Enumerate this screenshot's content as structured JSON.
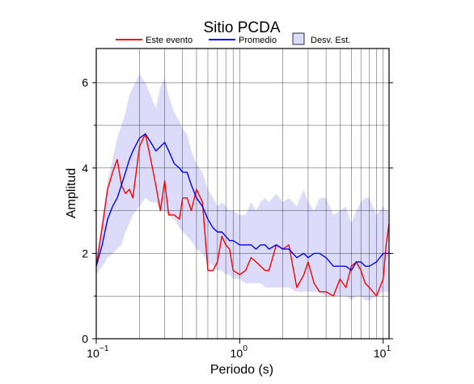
{
  "chart_data": {
    "type": "line",
    "title": "Sitio PCDA",
    "xlabel": "Periodo (s)",
    "ylabel": "Amplitud",
    "x_scale": "log",
    "xlim": [
      0.1,
      11
    ],
    "ylim": [
      0,
      6.8
    ],
    "grid": true,
    "legend_position": "top",
    "x_ticks": [
      {
        "base": "10",
        "exp": "−1",
        "value": 0.1
      },
      {
        "base": "10",
        "exp": "0",
        "value": 1
      },
      {
        "base": "10",
        "exp": "1",
        "value": 10
      }
    ],
    "y_ticks": [
      "0",
      "2",
      "4",
      "6"
    ],
    "y_tick_values": [
      0,
      2,
      4,
      6
    ],
    "legend": [
      {
        "label": "Este evento",
        "color": "#ff0000",
        "kind": "line"
      },
      {
        "label": "Promedio",
        "color": "#0000ff",
        "kind": "line"
      },
      {
        "label": "Desv. Est.",
        "color": "#dcdcfa",
        "kind": "box"
      }
    ],
    "x": [
      0.1,
      0.11,
      0.12,
      0.13,
      0.14,
      0.15,
      0.16,
      0.17,
      0.18,
      0.2,
      0.22,
      0.24,
      0.26,
      0.28,
      0.3,
      0.32,
      0.35,
      0.38,
      0.4,
      0.43,
      0.46,
      0.5,
      0.55,
      0.6,
      0.65,
      0.7,
      0.75,
      0.8,
      0.85,
      0.9,
      1.0,
      1.1,
      1.2,
      1.3,
      1.4,
      1.5,
      1.6,
      1.8,
      2.0,
      2.2,
      2.5,
      2.8,
      3.0,
      3.3,
      3.6,
      4.0,
      4.5,
      5.0,
      5.5,
      6.0,
      6.5,
      7.0,
      7.5,
      8.0,
      9.0,
      10.0,
      10.5,
      11.0
    ],
    "series": [
      {
        "name": "Este evento",
        "color": "#ff0000",
        "values": [
          1.7,
          2.6,
          3.5,
          3.9,
          4.2,
          3.6,
          3.4,
          3.5,
          3.3,
          4.5,
          4.8,
          4.2,
          3.6,
          3.0,
          3.7,
          2.9,
          2.9,
          2.8,
          3.3,
          3.3,
          3.0,
          3.5,
          3.2,
          1.6,
          1.6,
          1.8,
          2.4,
          2.2,
          2.1,
          1.6,
          1.5,
          1.6,
          1.9,
          1.8,
          1.7,
          1.6,
          1.6,
          2.2,
          2.1,
          2.2,
          1.2,
          1.5,
          1.8,
          1.3,
          1.1,
          1.1,
          1.0,
          1.4,
          1.2,
          1.7,
          1.8,
          1.6,
          1.3,
          1.2,
          1.0,
          1.4,
          2.2,
          2.7
        ]
      },
      {
        "name": "Promedio",
        "color": "#0000ff",
        "values": [
          1.7,
          2.2,
          2.8,
          3.1,
          3.3,
          3.6,
          3.9,
          4.2,
          4.4,
          4.7,
          4.8,
          4.6,
          4.4,
          4.5,
          4.6,
          4.4,
          4.1,
          4.0,
          3.9,
          3.9,
          3.6,
          3.3,
          3.1,
          2.8,
          2.6,
          2.5,
          2.5,
          2.4,
          2.3,
          2.3,
          2.2,
          2.2,
          2.2,
          2.1,
          2.2,
          2.2,
          2.1,
          2.2,
          2.1,
          2.1,
          1.9,
          2.0,
          1.9,
          2.0,
          2.0,
          1.9,
          1.7,
          1.7,
          1.7,
          1.6,
          1.8,
          1.8,
          1.7,
          1.7,
          1.8,
          2.0,
          2.0,
          2.0
        ]
      },
      {
        "name": "Desv. Est. (upper)",
        "color": "#dcdcfa",
        "values": [
          1.9,
          2.8,
          3.7,
          4.2,
          4.7,
          5.0,
          5.3,
          5.7,
          5.9,
          6.2,
          6.0,
          5.7,
          5.4,
          5.9,
          6.1,
          5.7,
          5.3,
          5.1,
          4.9,
          4.8,
          4.4,
          4.1,
          3.9,
          3.5,
          3.3,
          3.1,
          3.2,
          3.1,
          3.0,
          3.0,
          2.9,
          2.9,
          3.2,
          3.0,
          3.2,
          3.3,
          3.2,
          3.4,
          3.2,
          3.3,
          3.1,
          3.5,
          3.2,
          3.0,
          3.3,
          3.3,
          2.9,
          3.0,
          3.1,
          2.7,
          3.0,
          3.2,
          3.3,
          3.3,
          2.9,
          3.1,
          3.0,
          3.0
        ]
      },
      {
        "name": "Desv. Est. (lower)",
        "color": "#dcdcfa",
        "values": [
          1.5,
          1.7,
          1.9,
          2.0,
          2.1,
          2.2,
          2.5,
          2.7,
          2.9,
          3.1,
          3.3,
          3.2,
          3.2,
          3.0,
          3.0,
          2.9,
          2.8,
          2.6,
          2.5,
          2.4,
          2.3,
          2.1,
          2.0,
          1.8,
          1.7,
          1.6,
          1.6,
          1.5,
          1.5,
          1.4,
          1.4,
          1.3,
          1.3,
          1.3,
          1.3,
          1.2,
          1.2,
          1.2,
          1.2,
          1.2,
          1.1,
          1.1,
          1.1,
          1.1,
          1.1,
          1.0,
          1.0,
          1.0,
          1.0,
          0.9,
          1.0,
          1.0,
          0.9,
          0.9,
          1.0,
          1.1,
          1.1,
          1.1
        ]
      }
    ]
  }
}
